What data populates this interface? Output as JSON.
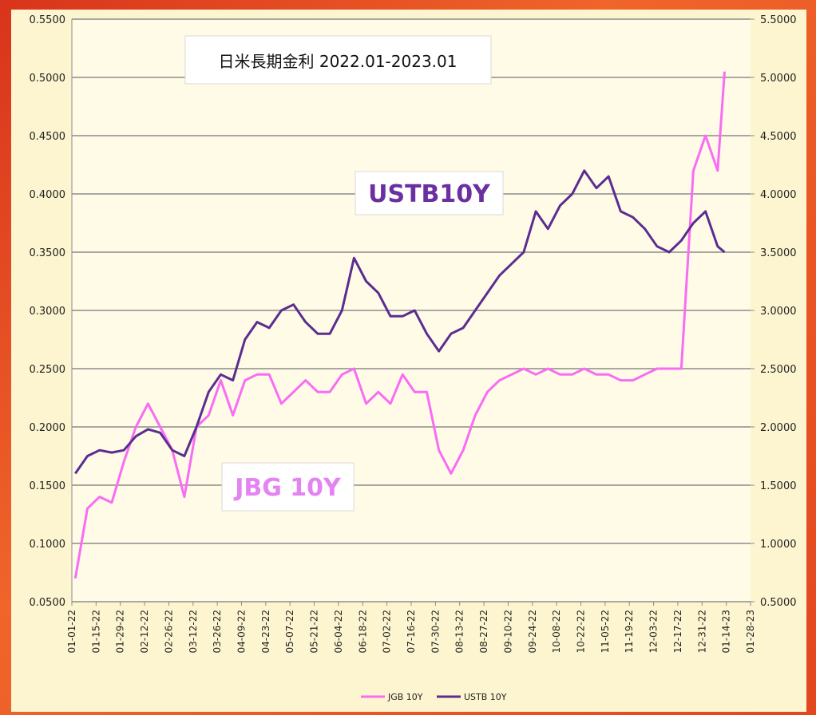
{
  "chart_data": {
    "type": "line",
    "title": "日米長期金利 2022.01-2023.01",
    "annotations": [
      "USTB10Y",
      "JBG 10Y"
    ],
    "x": [
      "01-03-22",
      "01-10-22",
      "01-17-22",
      "01-24-22",
      "01-31-22",
      "02-07-22",
      "02-14-22",
      "02-21-22",
      "02-28-22",
      "03-07-22",
      "03-14-22",
      "03-21-22",
      "03-28-22",
      "04-04-22",
      "04-11-22",
      "04-18-22",
      "04-25-22",
      "05-02-22",
      "05-09-22",
      "05-16-22",
      "05-23-22",
      "05-30-22",
      "06-06-22",
      "06-13-22",
      "06-20-22",
      "06-27-22",
      "07-04-22",
      "07-11-22",
      "07-18-22",
      "07-25-22",
      "08-01-22",
      "08-08-22",
      "08-15-22",
      "08-22-22",
      "08-29-22",
      "09-05-22",
      "09-12-22",
      "09-19-22",
      "09-26-22",
      "10-03-22",
      "10-10-22",
      "10-17-22",
      "10-24-22",
      "10-31-22",
      "11-07-22",
      "11-14-22",
      "11-21-22",
      "11-28-22",
      "12-05-22",
      "12-12-22",
      "12-19-22",
      "12-26-22",
      "01-02-23",
      "01-09-23",
      "01-13-23"
    ],
    "series": [
      {
        "name": "JGB 10Y",
        "color": "#f96cf4",
        "values": [
          0.07,
          0.13,
          0.14,
          0.135,
          0.17,
          0.2,
          0.22,
          0.2,
          0.18,
          0.14,
          0.2,
          0.21,
          0.24,
          0.21,
          0.24,
          0.245,
          0.245,
          0.22,
          0.23,
          0.24,
          0.23,
          0.23,
          0.245,
          0.25,
          0.22,
          0.23,
          0.22,
          0.245,
          0.23,
          0.23,
          0.18,
          0.16,
          0.18,
          0.21,
          0.23,
          0.24,
          0.245,
          0.25,
          0.245,
          0.25,
          0.245,
          0.245,
          0.25,
          0.245,
          0.245,
          0.24,
          0.24,
          0.245,
          0.25,
          0.25,
          0.25,
          0.42,
          0.45,
          0.42,
          0.505
        ]
      },
      {
        "name": "USTB 10Y",
        "color": "#5b2d91",
        "axis": "y2",
        "values": [
          1.6,
          1.75,
          1.8,
          1.78,
          1.8,
          1.92,
          1.98,
          1.95,
          1.8,
          1.75,
          2.0,
          2.3,
          2.45,
          2.4,
          2.75,
          2.9,
          2.85,
          3.0,
          3.05,
          2.9,
          2.8,
          2.8,
          3.0,
          3.45,
          3.25,
          3.15,
          2.95,
          2.95,
          3.0,
          2.8,
          2.65,
          2.8,
          2.85,
          3.0,
          3.15,
          3.3,
          3.4,
          3.5,
          3.85,
          3.7,
          3.9,
          4.0,
          4.2,
          4.05,
          4.15,
          3.85,
          3.8,
          3.7,
          3.55,
          3.5,
          3.6,
          3.75,
          3.85,
          3.55,
          3.5
        ]
      }
    ],
    "xlim": [
      "01-01-22",
      "01-28-23"
    ],
    "xticks": [
      "01-01-22",
      "01-15-22",
      "01-29-22",
      "02-12-22",
      "02-26-22",
      "03-12-22",
      "03-26-22",
      "04-09-22",
      "04-23-22",
      "05-07-22",
      "05-21-22",
      "06-04-22",
      "06-18-22",
      "07-02-22",
      "07-16-22",
      "07-30-22",
      "08-13-22",
      "08-27-22",
      "09-10-22",
      "09-24-22",
      "10-08-22",
      "10-22-22",
      "11-05-22",
      "11-19-22",
      "12-03-22",
      "12-17-22",
      "12-31-22",
      "01-14-23",
      "01-28-23"
    ],
    "ylim": [
      0.05,
      0.55
    ],
    "yticks": [
      {
        "value": 0.05,
        "label": "0.0500"
      },
      {
        "value": 0.1,
        "label": "0.1000"
      },
      {
        "value": 0.15,
        "label": "0.1500"
      },
      {
        "value": 0.2,
        "label": "0.2000"
      },
      {
        "value": 0.25,
        "label": "0.2500"
      },
      {
        "value": 0.3,
        "label": "0.3000"
      },
      {
        "value": 0.35,
        "label": "0.3500"
      },
      {
        "value": 0.4,
        "label": "0.4000"
      },
      {
        "value": 0.45,
        "label": "0.4500"
      },
      {
        "value": 0.5,
        "label": "0.5000"
      },
      {
        "value": 0.55,
        "label": "0.5500"
      }
    ],
    "y2lim": [
      0.5,
      5.5
    ],
    "y2ticks": [
      {
        "value": 0.5,
        "label": "0.5000"
      },
      {
        "value": 1,
        "label": "1.0000"
      },
      {
        "value": 1.5,
        "label": "1.5000"
      },
      {
        "value": 2,
        "label": "2.0000"
      },
      {
        "value": 2.5,
        "label": "2.5000"
      },
      {
        "value": 3,
        "label": "3.0000"
      },
      {
        "value": 3.5,
        "label": "3.5000"
      },
      {
        "value": 4,
        "label": "4.0000"
      },
      {
        "value": 4.5,
        "label": "4.5000"
      },
      {
        "value": 5,
        "label": "5.0000"
      },
      {
        "value": 5.5,
        "label": "5.5000"
      }
    ],
    "grid": true,
    "legend": "bottom"
  }
}
